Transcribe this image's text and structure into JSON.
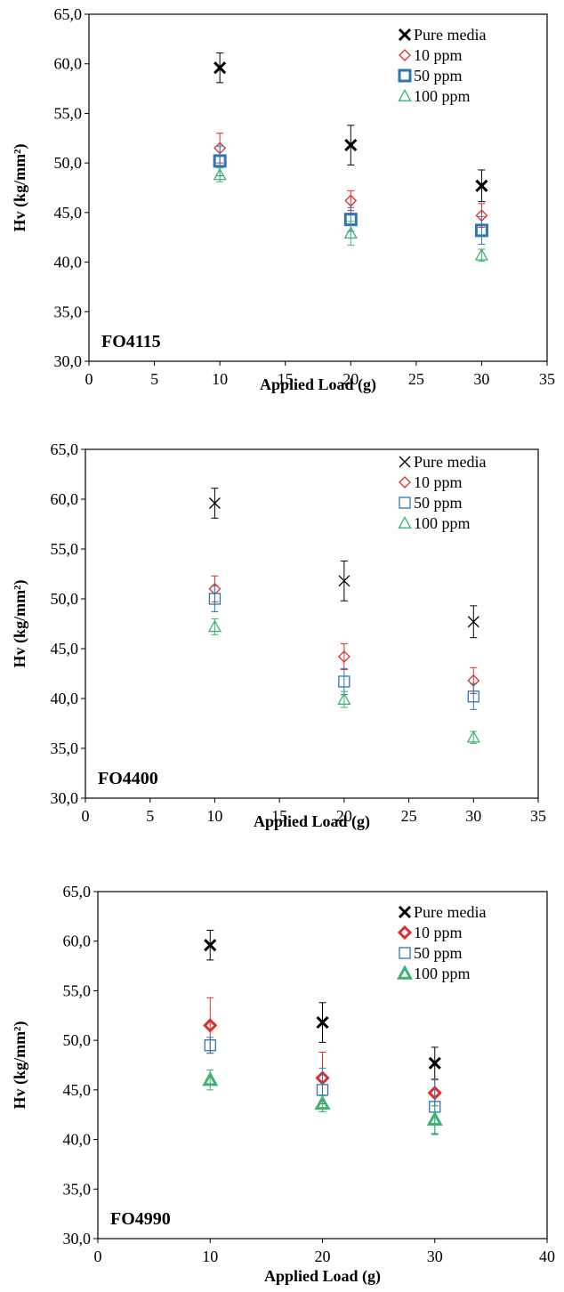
{
  "chart_data": [
    {
      "type": "scatter",
      "title": "",
      "panel_label": "FO4115",
      "xlabel": "Applied Load (g)",
      "ylabel": "Hv (kg/mm²)",
      "xlim": [
        0,
        35
      ],
      "ylim": [
        30,
        65
      ],
      "x_ticks": [
        "0",
        "5",
        "10",
        "15",
        "20",
        "25",
        "30",
        "35"
      ],
      "y_ticks": [
        "30,0",
        "35,0",
        "40,0",
        "45,0",
        "50,0",
        "55,0",
        "60,0",
        "65,0"
      ],
      "grid": false,
      "legend_position": "top-right",
      "series": [
        {
          "name": "Pure media",
          "marker": "x",
          "color": "#000000",
          "bold": true,
          "x": [
            10,
            20,
            30
          ],
          "y": [
            59.6,
            51.8,
            47.7
          ],
          "err": [
            1.5,
            2.0,
            1.6
          ]
        },
        {
          "name": "10 ppm",
          "marker": "diamond",
          "color": "#d9302c",
          "bold": false,
          "x": [
            10,
            20,
            30
          ],
          "y": [
            51.5,
            46.2,
            44.7
          ],
          "err": [
            1.5,
            1.0,
            1.2
          ]
        },
        {
          "name": "50 ppm",
          "marker": "square",
          "color": "#2e75b6",
          "bold": true,
          "x": [
            10,
            20,
            30
          ],
          "y": [
            50.2,
            44.3,
            43.2
          ],
          "err": [
            1.5,
            1.2,
            1.4
          ]
        },
        {
          "name": "100 ppm",
          "marker": "triangle",
          "color": "#3cb371",
          "bold": false,
          "x": [
            10,
            20,
            30
          ],
          "y": [
            48.8,
            42.9,
            40.7
          ],
          "err": [
            0.7,
            1.2,
            0.6
          ]
        }
      ]
    },
    {
      "type": "scatter",
      "title": "",
      "panel_label": "FO4400",
      "xlabel": "Applied Load (g)",
      "ylabel": "Hv (kg/mm²)",
      "xlim": [
        0,
        35
      ],
      "ylim": [
        30,
        65
      ],
      "x_ticks": [
        "0",
        "5",
        "10",
        "15",
        "20",
        "25",
        "30",
        "35"
      ],
      "y_ticks": [
        "30,0",
        "35,0",
        "40,0",
        "45,0",
        "50,0",
        "55,0",
        "60,0",
        "65,0"
      ],
      "grid": false,
      "legend_position": "top-right",
      "series": [
        {
          "name": "Pure media",
          "marker": "x",
          "color": "#000000",
          "bold": false,
          "x": [
            10,
            20,
            30
          ],
          "y": [
            59.6,
            51.8,
            47.7
          ],
          "err": [
            1.5,
            2.0,
            1.6
          ]
        },
        {
          "name": "10 ppm",
          "marker": "diamond",
          "color": "#d9302c",
          "bold": false,
          "x": [
            10,
            20,
            30
          ],
          "y": [
            51.0,
            44.2,
            41.8
          ],
          "err": [
            1.3,
            1.3,
            1.3
          ]
        },
        {
          "name": "50 ppm",
          "marker": "square",
          "color": "#2e75b6",
          "bold": false,
          "x": [
            10,
            20,
            30
          ],
          "y": [
            50.0,
            41.7,
            40.2
          ],
          "err": [
            1.3,
            1.3,
            1.3
          ]
        },
        {
          "name": "100 ppm",
          "marker": "triangle",
          "color": "#3cb371",
          "bold": false,
          "x": [
            10,
            20,
            30
          ],
          "y": [
            47.2,
            39.9,
            36.1
          ],
          "err": [
            0.8,
            0.8,
            0.6
          ]
        }
      ]
    },
    {
      "type": "scatter",
      "title": "",
      "panel_label": "FO4990",
      "xlabel": "Applied Load (g)",
      "ylabel": "Hv (kg/mm²)",
      "xlim": [
        0,
        40
      ],
      "ylim": [
        30,
        65
      ],
      "x_ticks": [
        "0",
        "10",
        "20",
        "30",
        "40"
      ],
      "y_ticks": [
        "30,0",
        "35,0",
        "40,0",
        "45,0",
        "50,0",
        "55,0",
        "60,0",
        "65,0"
      ],
      "grid": false,
      "legend_position": "top-right",
      "series": [
        {
          "name": "Pure media",
          "marker": "x",
          "color": "#000000",
          "bold": true,
          "x": [
            10,
            20,
            30
          ],
          "y": [
            59.6,
            51.8,
            47.7
          ],
          "err": [
            1.5,
            2.0,
            1.6
          ]
        },
        {
          "name": "10 ppm",
          "marker": "diamond",
          "color": "#d9302c",
          "bold": true,
          "x": [
            10,
            20,
            30
          ],
          "y": [
            51.5,
            46.2,
            44.7
          ],
          "err": [
            2.8,
            2.6,
            1.3
          ]
        },
        {
          "name": "50 ppm",
          "marker": "square",
          "color": "#2e75b6",
          "bold": false,
          "x": [
            10,
            20,
            30
          ],
          "y": [
            49.5,
            45.0,
            43.3
          ],
          "err": [
            0.8,
            2.2,
            2.8
          ]
        },
        {
          "name": "100 ppm",
          "marker": "triangle",
          "color": "#3cb371",
          "bold": true,
          "x": [
            10,
            20,
            30
          ],
          "y": [
            46.0,
            43.6,
            42.0
          ],
          "err": [
            1.0,
            0.8,
            1.4
          ]
        }
      ]
    }
  ]
}
